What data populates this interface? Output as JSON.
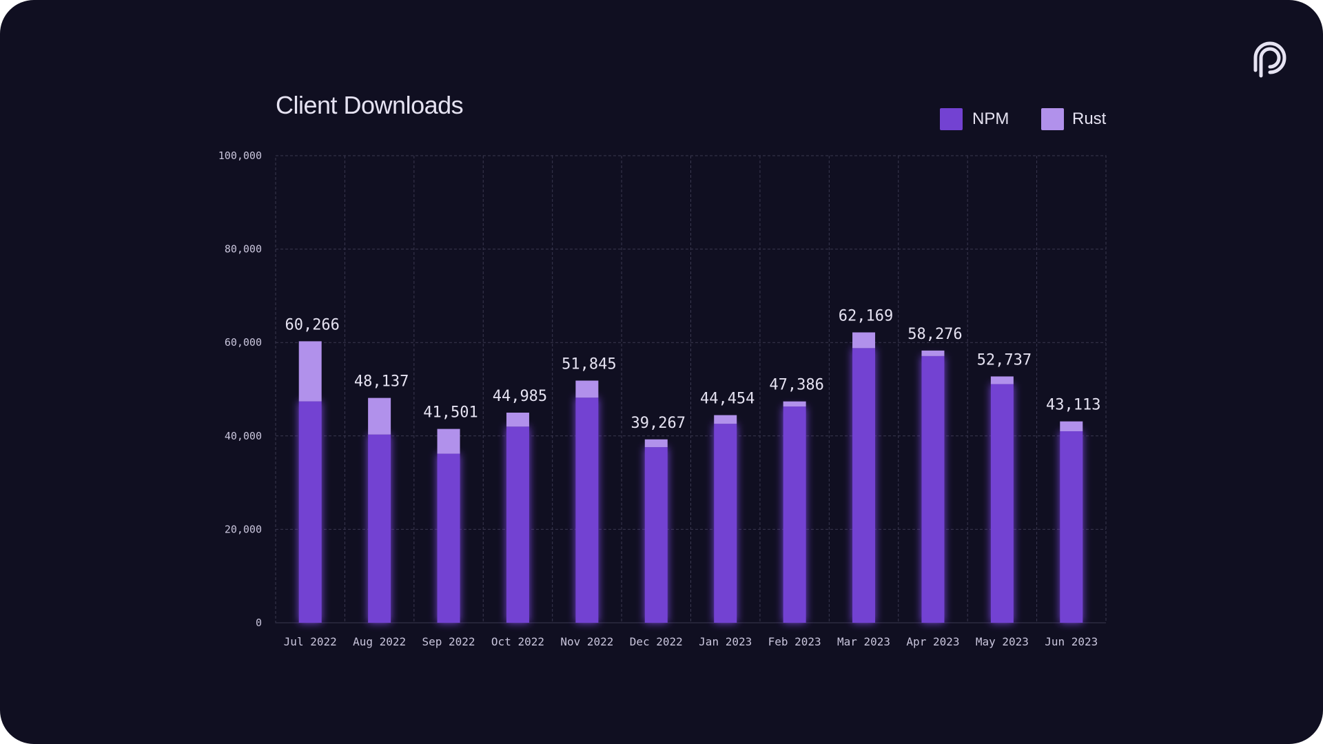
{
  "colors": {
    "background": "#100f21",
    "npm": "#7342d2",
    "rust": "#b191eb",
    "grid": "#3a3850",
    "text": "#e6e3f2",
    "axis_text": "#c9c5dc"
  },
  "logo": {
    "icon": "pyth-logo-icon"
  },
  "chart_data": {
    "type": "bar",
    "stacked": true,
    "title": "Client Downloads",
    "xlabel": "",
    "ylabel": "",
    "ylim": [
      0,
      100000
    ],
    "yticks": [
      0,
      20000,
      40000,
      60000,
      80000,
      100000
    ],
    "ytick_labels": [
      "0",
      "20,000",
      "40,000",
      "60,000",
      "80,000",
      "100,000"
    ],
    "grid": true,
    "legend_position": "top-right",
    "categories": [
      "Jul 2022",
      "Aug 2022",
      "Sep 2022",
      "Oct 2022",
      "Nov 2022",
      "Dec 2022",
      "Jan 2023",
      "Feb 2023",
      "Mar 2023",
      "Apr 2023",
      "May 2023",
      "Jun 2023"
    ],
    "series": [
      {
        "name": "NPM",
        "values": [
          47400,
          40300,
          36200,
          42000,
          48200,
          37600,
          42600,
          46300,
          58800,
          57100,
          51100,
          41000
        ]
      },
      {
        "name": "Rust",
        "values": [
          12866,
          7837,
          5301,
          2985,
          3645,
          1667,
          1854,
          1086,
          3369,
          1176,
          1637,
          2113
        ]
      }
    ],
    "totals": [
      60266,
      48137,
      41501,
      44985,
      51845,
      39267,
      44454,
      47386,
      62169,
      58276,
      52737,
      43113
    ],
    "total_labels": [
      "60,266",
      "48,137",
      "41,501",
      "44,985",
      "51,845",
      "39,267",
      "44,454",
      "47,386",
      "62,169",
      "58,276",
      "52,737",
      "43,113"
    ]
  }
}
